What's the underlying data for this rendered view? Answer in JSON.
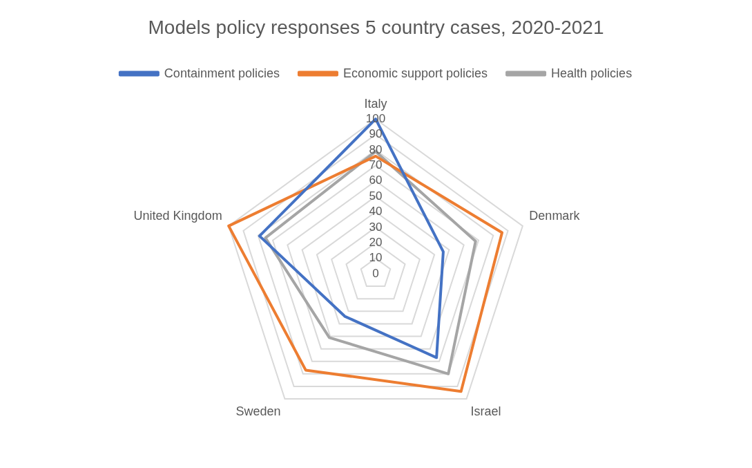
{
  "chart_data": {
    "type": "radar",
    "title": "Models policy responses 5 country cases, 2020-2021",
    "categories": [
      "Italy",
      "Denmark",
      "Israel",
      "Sweden",
      "United Kingdom"
    ],
    "series": [
      {
        "name": "Containment policies",
        "color": "#4472c4",
        "values": [
          100,
          46,
          67,
          34,
          79
        ]
      },
      {
        "name": "Economic support policies",
        "color": "#ed7d31",
        "values": [
          76,
          86,
          94,
          77,
          100
        ]
      },
      {
        "name": "Health policies",
        "color": "#a5a5a5",
        "values": [
          79,
          68,
          80,
          51,
          75
        ]
      }
    ],
    "ylim": [
      0,
      100
    ],
    "yticks": [
      0,
      10,
      20,
      30,
      40,
      50,
      60,
      70,
      80,
      90,
      100
    ],
    "grid": true,
    "legend": "top",
    "marker": "none",
    "line_style": "solid"
  }
}
